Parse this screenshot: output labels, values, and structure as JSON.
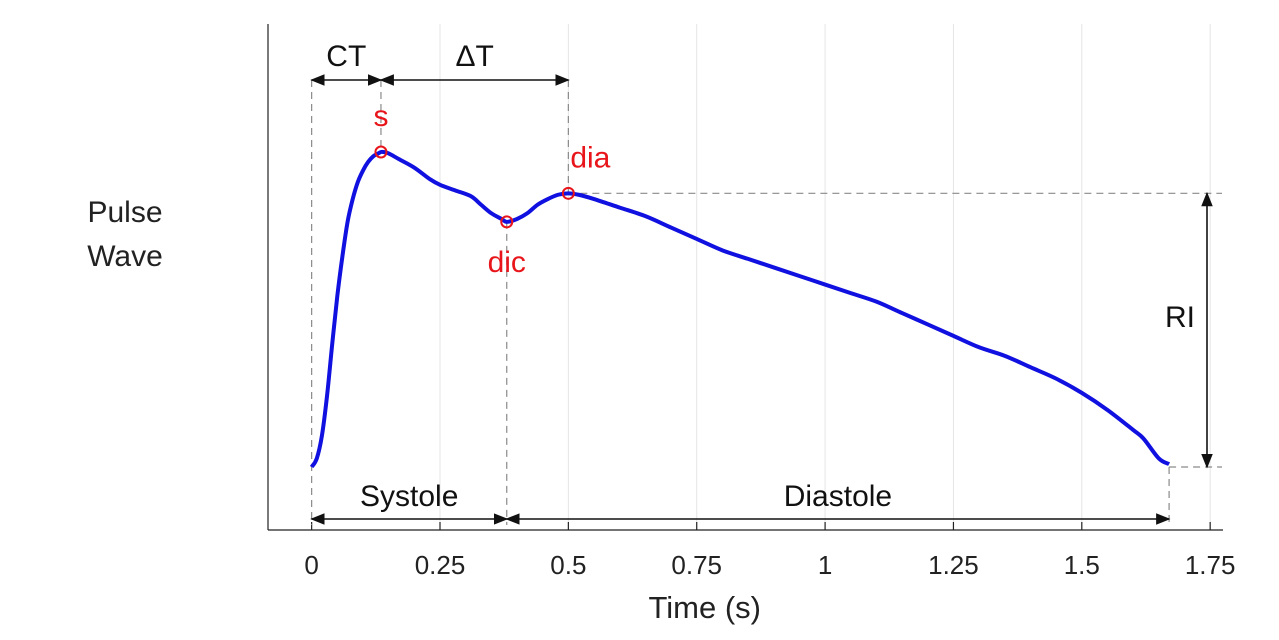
{
  "chart_data": {
    "type": "line",
    "xlabel": "Time (s)",
    "ylabel": [
      "Pulse",
      "Wave"
    ],
    "xlim": [
      -0.085,
      1.775
    ],
    "ylim": [
      0,
      1.2
    ],
    "xticks": [
      0,
      0.25,
      0.5,
      0.75,
      1,
      1.25,
      1.5,
      1.75
    ],
    "xtick_labels": [
      "0",
      "0.25",
      "0.5",
      "0.75",
      "1",
      "1.25",
      "1.5",
      "1.75"
    ],
    "grid_x": true,
    "series": [
      {
        "name": "Pulse Wave",
        "color": "#1010e0",
        "x": [
          0,
          0.01,
          0.02,
          0.03,
          0.04,
          0.05,
          0.06,
          0.07,
          0.08,
          0.09,
          0.1,
          0.11,
          0.12,
          0.13,
          0.135,
          0.14,
          0.15,
          0.17,
          0.2,
          0.23,
          0.25,
          0.28,
          0.31,
          0.33,
          0.35,
          0.37,
          0.38,
          0.4,
          0.42,
          0.44,
          0.46,
          0.48,
          0.5,
          0.52,
          0.55,
          0.6,
          0.65,
          0.7,
          0.75,
          0.8,
          0.85,
          0.9,
          0.95,
          1.0,
          1.05,
          1.1,
          1.15,
          1.2,
          1.25,
          1.3,
          1.35,
          1.4,
          1.45,
          1.5,
          1.55,
          1.6,
          1.62,
          1.65,
          1.67
        ],
        "y": [
          0.02,
          0.05,
          0.13,
          0.27,
          0.45,
          0.62,
          0.76,
          0.88,
          0.96,
          1.02,
          1.06,
          1.09,
          1.11,
          1.12,
          1.125,
          1.125,
          1.12,
          1.1,
          1.07,
          1.03,
          1.01,
          0.99,
          0.97,
          0.94,
          0.91,
          0.89,
          0.88,
          0.89,
          0.91,
          0.94,
          0.96,
          0.975,
          0.98,
          0.975,
          0.96,
          0.93,
          0.9,
          0.86,
          0.82,
          0.78,
          0.75,
          0.72,
          0.69,
          0.66,
          0.63,
          0.6,
          0.56,
          0.52,
          0.48,
          0.44,
          0.41,
          0.37,
          0.33,
          0.28,
          0.22,
          0.15,
          0.12,
          0.05,
          0.03
        ]
      }
    ],
    "points": [
      {
        "label": "s",
        "x": 0.135,
        "y": 1.125,
        "label_position": "above"
      },
      {
        "label": "dic",
        "x": 0.38,
        "y": 0.88,
        "label_position": "below"
      },
      {
        "label": "dia",
        "x": 0.5,
        "y": 0.98,
        "label_position": "above"
      }
    ],
    "annotations": {
      "ct": "CT",
      "delta_t": "ΔT",
      "systole": "Systole",
      "diastole": "Diastole",
      "ri": "RI"
    },
    "annotation_ranges": {
      "ct": [
        0,
        0.135
      ],
      "delta_t": [
        0.135,
        0.5
      ],
      "systole": [
        0,
        0.38
      ],
      "diastole": [
        0.38,
        1.67
      ],
      "ri": [
        0.02,
        0.98
      ]
    },
    "annotation_color": "#111111",
    "point_color": "#e8151b"
  }
}
